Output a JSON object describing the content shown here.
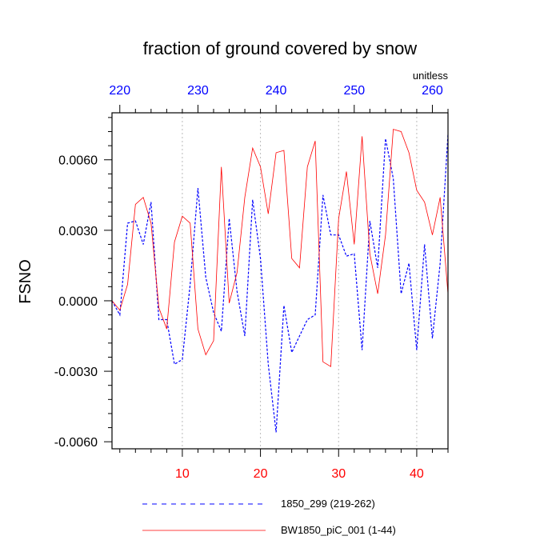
{
  "chart_data": {
    "type": "line",
    "title": "fraction of ground covered by snow",
    "units": "unitless",
    "ylabel": "FSNO",
    "xlim": [
      1,
      44
    ],
    "x2lim": [
      219,
      262
    ],
    "ylim": [
      -0.0063,
      0.008
    ],
    "yticks": [
      {
        "value": 0.006,
        "label": "0.0060"
      },
      {
        "value": 0.003,
        "label": "0.0030"
      },
      {
        "value": 0.0,
        "label": "0.0000"
      },
      {
        "value": -0.003,
        "label": "-0.0030"
      },
      {
        "value": -0.006,
        "label": "-0.0060"
      }
    ],
    "xticks": [
      10,
      20,
      30,
      40
    ],
    "x2ticks": [
      220,
      230,
      240,
      250,
      260
    ],
    "grid": "vertical dotted",
    "legend_position": "bottom",
    "colors": {
      "series1": "#0000ff",
      "series2": "#ff0000"
    },
    "series": [
      {
        "name": "1850_299 (219-262)",
        "style": "dashed",
        "x": [
          1,
          2,
          3,
          4,
          5,
          6,
          7,
          8,
          9,
          10,
          11,
          12,
          13,
          14,
          15,
          16,
          17,
          18,
          19,
          20,
          21,
          22,
          23,
          24,
          25,
          26,
          27,
          28,
          29,
          30,
          31,
          32,
          33,
          34,
          35,
          36,
          37,
          38,
          39,
          40,
          41,
          42,
          43,
          44
        ],
        "values": [
          0.0,
          -0.0006,
          0.0033,
          0.0034,
          0.0024,
          0.0042,
          -0.0008,
          -0.0008,
          -0.0027,
          -0.0025,
          0.0007,
          0.0048,
          0.001,
          -0.0005,
          -0.0013,
          0.0035,
          0.0004,
          -0.0015,
          0.0043,
          0.0018,
          -0.0027,
          -0.0056,
          -0.0002,
          -0.0022,
          -0.0015,
          -0.0008,
          -0.0006,
          0.0045,
          0.0028,
          0.0028,
          0.0019,
          0.002,
          -0.0021,
          0.0034,
          0.0014,
          0.0069,
          0.0052,
          0.0003,
          0.0016,
          -0.0021,
          0.0024,
          -0.0016,
          0.0016,
          0.0071
        ]
      },
      {
        "name": "BW1850_piC_001 (1-44)",
        "style": "solid",
        "x": [
          1,
          2,
          3,
          4,
          5,
          6,
          7,
          8,
          9,
          10,
          11,
          12,
          13,
          14,
          15,
          16,
          17,
          18,
          19,
          20,
          21,
          22,
          23,
          24,
          25,
          26,
          27,
          28,
          29,
          30,
          31,
          32,
          33,
          34,
          35,
          36,
          37,
          38,
          39,
          40,
          41,
          42,
          43,
          44
        ],
        "values": [
          0.0,
          -0.0004,
          0.0007,
          0.0041,
          0.0044,
          0.0033,
          -0.0003,
          -0.0012,
          0.0025,
          0.0036,
          0.0033,
          -0.0012,
          -0.0023,
          -0.0017,
          0.0057,
          -0.0001,
          0.0012,
          0.0044,
          0.0065,
          0.0057,
          0.0037,
          0.0063,
          0.0064,
          0.0018,
          0.0014,
          0.0057,
          0.0068,
          -0.0026,
          -0.0028,
          0.0035,
          0.0055,
          0.0024,
          0.007,
          0.002,
          0.0003,
          0.0028,
          0.0073,
          0.0072,
          0.0063,
          0.0047,
          0.0042,
          0.0028,
          0.0044,
          0.0003
        ]
      }
    ]
  }
}
